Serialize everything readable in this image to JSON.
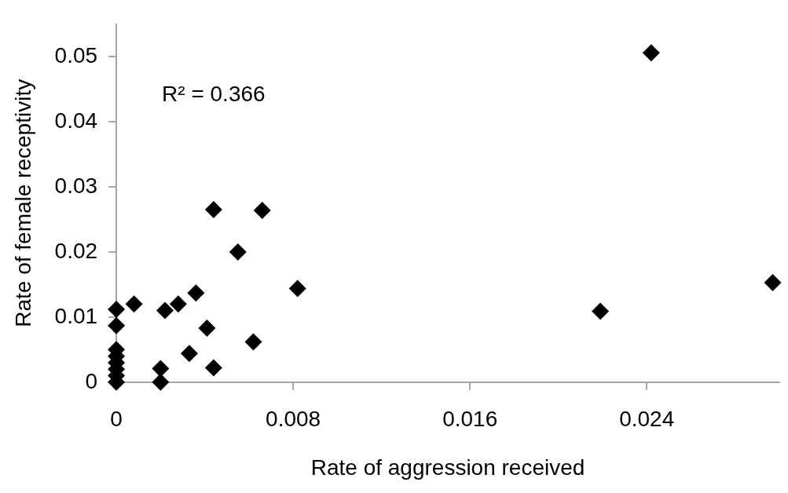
{
  "chart_data": {
    "type": "scatter",
    "xlabel": "Rate of aggression received",
    "ylabel": "Rate of female receptivity",
    "annotations": [
      "R² = 0.366"
    ],
    "x": [
      0.0044,
      0.0066,
      0.0055,
      0.0082,
      0.0036,
      0.0028,
      0.0022,
      0.0008,
      0,
      0,
      0.0041,
      0.0062,
      0.0033,
      0.0044,
      0.002,
      0.002,
      0,
      0,
      0,
      0,
      0,
      0,
      0.0242,
      0.0219,
      0.0297
    ],
    "values": [
      0.0265,
      0.0264,
      0.02,
      0.0144,
      0.0137,
      0.012,
      0.011,
      0.012,
      0.0112,
      0.0087,
      0.0083,
      0.0062,
      0.0044,
      0.0022,
      0.0021,
      0,
      0.005,
      0.004,
      0.003,
      0.002,
      0.001,
      0,
      0.0506,
      0.0109,
      0.0153
    ],
    "color": "#000000",
    "marker": "diamond",
    "xlim": [
      0,
      0.03
    ],
    "xticks": [
      0,
      0.008,
      0.016,
      0.024
    ],
    "ylim": [
      0,
      0.055
    ],
    "yticks": [
      0,
      0.01,
      0.02,
      0.03,
      0.04,
      0.05
    ],
    "grid": false,
    "legend": false
  }
}
